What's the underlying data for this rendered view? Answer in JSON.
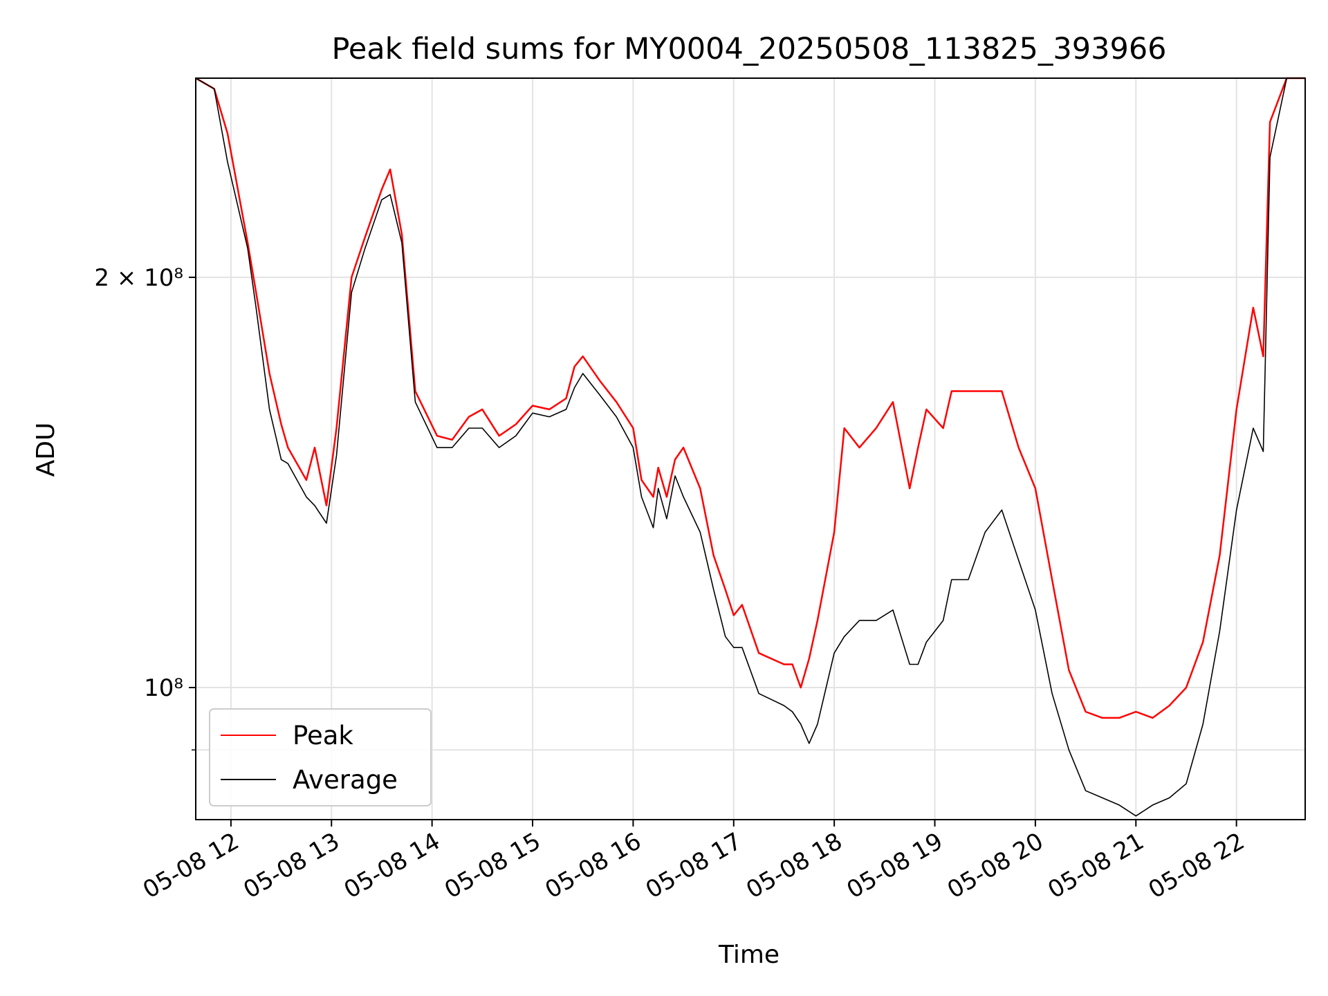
{
  "chart_data": {
    "type": "line",
    "title": "Peak field sums for MY0004_20250508_113825_393966",
    "xlabel": "Time",
    "ylabel": "ADU",
    "y_scale": "log",
    "xlim": [
      "2025-05-08 11:39",
      "2025-05-08 22:41"
    ],
    "ylim": [
      80000000,
      280000000
    ],
    "grid": true,
    "legend_position": "lower-left",
    "x_ticks": [
      "05-08 12",
      "05-08 13",
      "05-08 14",
      "05-08 15",
      "05-08 16",
      "05-08 17",
      "05-08 18",
      "05-08 19",
      "05-08 20",
      "05-08 21",
      "05-08 22"
    ],
    "y_tick_labels": [
      {
        "value": 200000000,
        "label": "2 × 10⁸"
      },
      {
        "value": 100000000,
        "label": "10⁸"
      }
    ],
    "series": [
      {
        "name": "Average",
        "color": "#000000",
        "x": [
          "2025-05-08 11:39",
          "2025-05-08 11:50",
          "2025-05-08 11:58",
          "2025-05-08 12:10",
          "2025-05-08 12:15",
          "2025-05-08 12:23",
          "2025-05-08 12:30",
          "2025-05-08 12:34",
          "2025-05-08 12:45",
          "2025-05-08 12:50",
          "2025-05-08 12:57",
          "2025-05-08 13:03",
          "2025-05-08 13:12",
          "2025-05-08 13:20",
          "2025-05-08 13:30",
          "2025-05-08 13:35",
          "2025-05-08 13:42",
          "2025-05-08 13:50",
          "2025-05-08 14:03",
          "2025-05-08 14:12",
          "2025-05-08 14:22",
          "2025-05-08 14:30",
          "2025-05-08 14:40",
          "2025-05-08 14:50",
          "2025-05-08 15:00",
          "2025-05-08 15:10",
          "2025-05-08 15:20",
          "2025-05-08 15:25",
          "2025-05-08 15:30",
          "2025-05-08 15:40",
          "2025-05-08 15:50",
          "2025-05-08 16:00",
          "2025-05-08 16:05",
          "2025-05-08 16:12",
          "2025-05-08 16:15",
          "2025-05-08 16:20",
          "2025-05-08 16:25",
          "2025-05-08 16:30",
          "2025-05-08 16:40",
          "2025-05-08 16:48",
          "2025-05-08 16:55",
          "2025-05-08 17:00",
          "2025-05-08 17:05",
          "2025-05-08 17:15",
          "2025-05-08 17:30",
          "2025-05-08 17:35",
          "2025-05-08 17:40",
          "2025-05-08 17:45",
          "2025-05-08 17:50",
          "2025-05-08 18:00",
          "2025-05-08 18:06",
          "2025-05-08 18:15",
          "2025-05-08 18:25",
          "2025-05-08 18:35",
          "2025-05-08 18:45",
          "2025-05-08 18:50",
          "2025-05-08 18:55",
          "2025-05-08 19:05",
          "2025-05-08 19:10",
          "2025-05-08 19:20",
          "2025-05-08 19:30",
          "2025-05-08 19:40",
          "2025-05-08 19:50",
          "2025-05-08 20:00",
          "2025-05-08 20:10",
          "2025-05-08 20:20",
          "2025-05-08 20:30",
          "2025-05-08 20:40",
          "2025-05-08 20:50",
          "2025-05-08 21:00",
          "2025-05-08 21:10",
          "2025-05-08 21:20",
          "2025-05-08 21:30",
          "2025-05-08 21:40",
          "2025-05-08 21:50",
          "2025-05-08 22:00",
          "2025-05-08 22:10",
          "2025-05-08 22:16",
          "2025-05-08 22:20",
          "2025-05-08 22:30",
          "2025-05-08 22:41"
        ],
        "values": [
          280000000,
          275000000,
          243000000,
          210000000,
          190000000,
          160000000,
          147000000,
          146000000,
          138000000,
          136000000,
          132000000,
          148000000,
          195000000,
          210000000,
          228000000,
          230000000,
          212000000,
          162000000,
          150000000,
          150000000,
          155000000,
          155000000,
          150000000,
          153000000,
          159000000,
          158000000,
          160000000,
          166000000,
          170000000,
          164000000,
          158000000,
          150000000,
          138000000,
          131000000,
          140000000,
          133000000,
          143000000,
          138000000,
          130000000,
          118000000,
          109000000,
          107000000,
          107000000,
          99000000,
          97000000,
          96000000,
          94000000,
          91000000,
          94000000,
          106000000,
          109000000,
          112000000,
          112000000,
          114000000,
          104000000,
          104000000,
          108000000,
          112000000,
          120000000,
          120000000,
          130000000,
          135000000,
          124000000,
          114000000,
          99000000,
          90000000,
          84000000,
          83000000,
          82000000,
          80500000,
          82000000,
          83000000,
          85000000,
          94000000,
          110000000,
          135000000,
          155000000,
          149000000,
          245000000,
          280000000,
          280000000
        ]
      },
      {
        "name": "Peak",
        "color": "#ff0000",
        "x": [
          "2025-05-08 11:39",
          "2025-05-08 11:50",
          "2025-05-08 11:58",
          "2025-05-08 12:10",
          "2025-05-08 12:15",
          "2025-05-08 12:23",
          "2025-05-08 12:30",
          "2025-05-08 12:34",
          "2025-05-08 12:45",
          "2025-05-08 12:50",
          "2025-05-08 12:57",
          "2025-05-08 13:03",
          "2025-05-08 13:12",
          "2025-05-08 13:20",
          "2025-05-08 13:30",
          "2025-05-08 13:35",
          "2025-05-08 13:42",
          "2025-05-08 13:50",
          "2025-05-08 14:03",
          "2025-05-08 14:12",
          "2025-05-08 14:22",
          "2025-05-08 14:30",
          "2025-05-08 14:40",
          "2025-05-08 14:50",
          "2025-05-08 15:00",
          "2025-05-08 15:10",
          "2025-05-08 15:20",
          "2025-05-08 15:25",
          "2025-05-08 15:30",
          "2025-05-08 15:40",
          "2025-05-08 15:50",
          "2025-05-08 16:00",
          "2025-05-08 16:05",
          "2025-05-08 16:12",
          "2025-05-08 16:15",
          "2025-05-08 16:20",
          "2025-05-08 16:25",
          "2025-05-08 16:30",
          "2025-05-08 16:40",
          "2025-05-08 16:48",
          "2025-05-08 16:55",
          "2025-05-08 17:00",
          "2025-05-08 17:05",
          "2025-05-08 17:15",
          "2025-05-08 17:30",
          "2025-05-08 17:35",
          "2025-05-08 17:40",
          "2025-05-08 17:45",
          "2025-05-08 17:50",
          "2025-05-08 18:00",
          "2025-05-08 18:06",
          "2025-05-08 18:15",
          "2025-05-08 18:25",
          "2025-05-08 18:35",
          "2025-05-08 18:45",
          "2025-05-08 18:50",
          "2025-05-08 18:55",
          "2025-05-08 19:05",
          "2025-05-08 19:10",
          "2025-05-08 19:20",
          "2025-05-08 19:30",
          "2025-05-08 19:40",
          "2025-05-08 19:50",
          "2025-05-08 20:00",
          "2025-05-08 20:10",
          "2025-05-08 20:20",
          "2025-05-08 20:30",
          "2025-05-08 20:40",
          "2025-05-08 20:50",
          "2025-05-08 21:00",
          "2025-05-08 21:10",
          "2025-05-08 21:20",
          "2025-05-08 21:30",
          "2025-05-08 21:40",
          "2025-05-08 21:50",
          "2025-05-08 22:00",
          "2025-05-08 22:10",
          "2025-05-08 22:16",
          "2025-05-08 22:20",
          "2025-05-08 22:30",
          "2025-05-08 22:41"
        ],
        "values": [
          280000000,
          275000000,
          255000000,
          212000000,
          195000000,
          170000000,
          156000000,
          150000000,
          142000000,
          150000000,
          136000000,
          155000000,
          200000000,
          214000000,
          232000000,
          240000000,
          215000000,
          165000000,
          153000000,
          152000000,
          158000000,
          160000000,
          153000000,
          156000000,
          161000000,
          160000000,
          163000000,
          172000000,
          175000000,
          168000000,
          162000000,
          155000000,
          142000000,
          138000000,
          145000000,
          138000000,
          147000000,
          150000000,
          140000000,
          125000000,
          118000000,
          113000000,
          115000000,
          106000000,
          104000000,
          104000000,
          100000000,
          105000000,
          112000000,
          130000000,
          155000000,
          150000000,
          155000000,
          162000000,
          140000000,
          150000000,
          160000000,
          155000000,
          165000000,
          165000000,
          165000000,
          165000000,
          150000000,
          140000000,
          120000000,
          103000000,
          96000000,
          95000000,
          95000000,
          96000000,
          95000000,
          97000000,
          100000000,
          108000000,
          125000000,
          160000000,
          190000000,
          175000000,
          260000000,
          280000000,
          280000000
        ]
      }
    ]
  },
  "legend": {
    "items": [
      {
        "label": "Peak",
        "color": "#ff0000"
      },
      {
        "label": "Average",
        "color": "#000000"
      }
    ]
  }
}
